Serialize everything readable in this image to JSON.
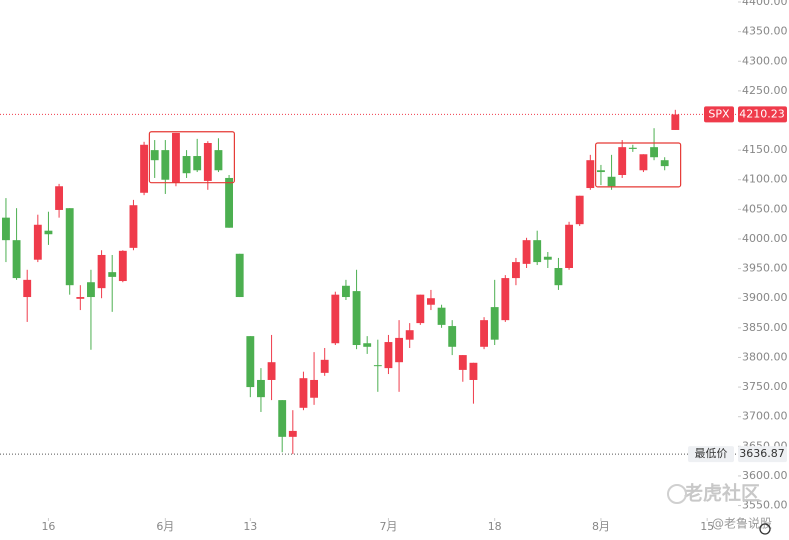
{
  "chart_data": {
    "type": "candlestick",
    "symbol": "SPX",
    "up_color": "#ef3b4b",
    "down_color": "#4caf50",
    "open": [
      4036,
      3998,
      3902,
      3965,
      4014,
      4049,
      4052,
      3899,
      3927,
      3917,
      3944,
      3929,
      3985,
      4078,
      4150,
      4150,
      4095,
      4140,
      4140,
      4098,
      4150,
      4103,
      3975,
      3836,
      3762,
      3762,
      3728,
      3666,
      3715,
      3732,
      3774,
      3824,
      3921,
      3912,
      3824,
      3787,
      3782,
      3792,
      3830,
      3858,
      3889,
      3884,
      3853,
      3779,
      3762,
      3818,
      3885,
      3863,
      3934,
      3958,
      3998,
      3970,
      3951,
      3951,
      4025,
      4086,
      4116,
      4105,
      4108,
      4154,
      4116,
      4155,
      4133,
      4184
    ],
    "high": [
      4069,
      4052,
      3948,
      4041,
      4046,
      4093,
      4052,
      3922,
      3948,
      3981,
      3973,
      3981,
      4066,
      4164,
      4167,
      4167,
      4179,
      4150,
      4169,
      4165,
      4170,
      4108,
      3975,
      3836,
      3782,
      3838,
      3728,
      3711,
      3776,
      3809,
      3816,
      3911,
      3931,
      3948,
      3836,
      3830,
      3838,
      3863,
      3858,
      3906,
      3914,
      3889,
      3863,
      3804,
      3791,
      3868,
      3931,
      3939,
      3968,
      4002,
      4014,
      3978,
      3968,
      4029,
      4073,
      4142,
      4125,
      4142,
      4167,
      4159,
      4143,
      4187,
      4138,
      4218
    ],
    "low": [
      3961,
      3931,
      3860,
      3961,
      3990,
      4036,
      3906,
      3880,
      3813,
      3900,
      3877,
      3927,
      3981,
      4074,
      4103,
      4076,
      4089,
      4103,
      4113,
      4083,
      4113,
      4019,
      3902,
      3733,
      3708,
      3728,
      3640,
      3636.87,
      3711,
      3720,
      3769,
      3821,
      3897,
      3814,
      3806,
      3742,
      3772,
      3742,
      3816,
      3855,
      3880,
      3850,
      3804,
      3759,
      3722,
      3814,
      3821,
      3860,
      3922,
      3951,
      3956,
      3951,
      3914,
      3948,
      4022,
      4083,
      4091,
      4083,
      4103,
      4147,
      4113,
      4133,
      4116,
      4184
    ],
    "close": [
      3998,
      3934,
      3931,
      4024,
      4008,
      4089,
      3922,
      3902,
      3902,
      3973,
      3936,
      3980,
      4057,
      4159,
      4133,
      4100,
      4179,
      4111,
      4116,
      4162,
      4116,
      4019,
      3902,
      3750,
      3733,
      3792,
      3666,
      3676,
      3765,
      3762,
      3796,
      3906,
      3902,
      3821,
      3818,
      3786,
      3826,
      3833,
      3846,
      3906,
      3900,
      3855,
      3818,
      3804,
      3791,
      3863,
      3830,
      3934,
      3961,
      3998,
      3961,
      3965,
      3922,
      4024,
      4073,
      4133,
      4113,
      4089,
      4155,
      4152,
      4143,
      4138,
      4123,
      4210.23
    ],
    "xlim": [
      -0.56,
      68.9
    ],
    "xticks": [
      {
        "value": 4,
        "label": "16"
      },
      {
        "value": 15,
        "label": "6月"
      },
      {
        "value": 23,
        "label": "13"
      },
      {
        "value": 36,
        "label": "7月"
      },
      {
        "value": 46,
        "label": "18"
      },
      {
        "value": 56,
        "label": "8月"
      },
      {
        "value": 66,
        "label": "15"
      }
    ],
    "ylim": [
      3529,
      4403.4
    ],
    "yticks": [
      {
        "value": 4400,
        "label": "4400.00"
      },
      {
        "value": 4350,
        "label": "4350.00"
      },
      {
        "value": 4300,
        "label": "4300.00"
      },
      {
        "value": 4250,
        "label": "4250.00"
      },
      {
        "value": 4150,
        "label": "4150.00"
      },
      {
        "value": 4100,
        "label": "4100.00"
      },
      {
        "value": 4050,
        "label": "4050.00"
      },
      {
        "value": 4000,
        "label": "4000.00"
      },
      {
        "value": 3950,
        "label": "3950.00"
      },
      {
        "value": 3900,
        "label": "3900.00"
      },
      {
        "value": 3850,
        "label": "3850.00"
      },
      {
        "value": 3800,
        "label": "3800.00"
      },
      {
        "value": 3750,
        "label": "3750.00"
      },
      {
        "value": 3700,
        "label": "3700.00"
      },
      {
        "value": 3650,
        "label": "3650.00"
      },
      {
        "value": 3600,
        "label": "3600.00"
      },
      {
        "value": 3550,
        "label": "3550.00"
      }
    ],
    "low_price_label": "最低价",
    "highlights": [
      {
        "from": 14,
        "to": 21,
        "range": [
          4095,
          4181
        ]
      },
      {
        "from": 56,
        "to": 63,
        "range": [
          4088,
          4162
        ]
      }
    ],
    "watermark": "老虎社区",
    "credit": "@老鲁说股"
  }
}
